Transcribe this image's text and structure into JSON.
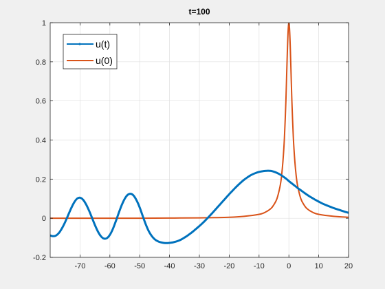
{
  "window": {
    "background": "#f0f0f0"
  },
  "chart_data": {
    "type": "line",
    "title": "t=100",
    "xlabel": "",
    "ylabel": "",
    "xlim": [
      -80,
      20
    ],
    "ylim": [
      -0.2,
      1
    ],
    "grid": true,
    "legend_position": "top-left",
    "x_ticks": [
      -70,
      -60,
      -50,
      -40,
      -30,
      -20,
      -10,
      0,
      10,
      20
    ],
    "x_tick_labels": [
      "-70",
      "-60",
      "-50",
      "-40",
      "-30",
      "-20",
      "-10",
      "0",
      "10",
      "20"
    ],
    "y_ticks": [
      -0.2,
      0,
      0.2,
      0.4,
      0.6,
      0.8,
      1
    ],
    "y_tick_labels": [
      "-0.2",
      "0",
      "0.2",
      "0.4",
      "0.6",
      "0.8",
      "1"
    ],
    "series": [
      {
        "name": "u(t)",
        "color": "#0072bd",
        "line_width": 3,
        "x": [
          -80,
          -79,
          -78,
          -77,
          -76,
          -75,
          -74,
          -73,
          -72,
          -71,
          -70,
          -69,
          -68,
          -67,
          -66,
          -65,
          -64,
          -63,
          -62,
          -61,
          -60,
          -59,
          -58,
          -57,
          -56,
          -55,
          -54,
          -53,
          -52,
          -51,
          -50,
          -49,
          -48,
          -47,
          -46,
          -45,
          -44,
          -43,
          -42,
          -41,
          -40,
          -39,
          -38,
          -37,
          -36,
          -35,
          -34,
          -33,
          -32,
          -31,
          -30,
          -29,
          -28,
          -27,
          -26,
          -25,
          -24,
          -23,
          -22,
          -21,
          -20,
          -19,
          -18,
          -17,
          -16,
          -15,
          -14,
          -13,
          -12,
          -11,
          -10,
          -9,
          -8,
          -7,
          -6,
          -5,
          -4,
          -3,
          -2,
          -1,
          0,
          1,
          2,
          3,
          4,
          5,
          6,
          7,
          8,
          9,
          10,
          11,
          12,
          13,
          14,
          15,
          16,
          17,
          18,
          19,
          20
        ],
        "y": [
          -0.088,
          -0.092,
          -0.088,
          -0.074,
          -0.05,
          -0.02,
          0.015,
          0.05,
          0.08,
          0.1,
          0.105,
          0.095,
          0.072,
          0.04,
          0.003,
          -0.035,
          -0.068,
          -0.092,
          -0.104,
          -0.102,
          -0.085,
          -0.055,
          -0.015,
          0.028,
          0.068,
          0.1,
          0.12,
          0.125,
          0.115,
          0.09,
          0.055,
          0.012,
          -0.03,
          -0.065,
          -0.09,
          -0.107,
          -0.117,
          -0.123,
          -0.126,
          -0.127,
          -0.126,
          -0.124,
          -0.12,
          -0.115,
          -0.108,
          -0.099,
          -0.089,
          -0.078,
          -0.066,
          -0.053,
          -0.04,
          -0.026,
          -0.011,
          0.005,
          0.021,
          0.038,
          0.055,
          0.072,
          0.089,
          0.106,
          0.123,
          0.139,
          0.155,
          0.17,
          0.184,
          0.197,
          0.208,
          0.218,
          0.226,
          0.232,
          0.237,
          0.24,
          0.242,
          0.243,
          0.242,
          0.238,
          0.232,
          0.224,
          0.214,
          0.203,
          0.19,
          0.178,
          0.166,
          0.154,
          0.143,
          0.132,
          0.121,
          0.111,
          0.102,
          0.093,
          0.085,
          0.077,
          0.07,
          0.064,
          0.058,
          0.052,
          0.047,
          0.042,
          0.037,
          0.032,
          0.028
        ]
      },
      {
        "name": "u(0)",
        "color": "#d95319",
        "line_width": 2,
        "x": [
          -80,
          -70,
          -60,
          -50,
          -40,
          -30,
          -25,
          -20,
          -15,
          -10,
          -8,
          -6,
          -5,
          -4,
          -3,
          -2.5,
          -2,
          -1.5,
          -1,
          -0.75,
          -0.5,
          -0.25,
          0,
          0.25,
          0.5,
          0.75,
          1,
          1.5,
          2,
          2.5,
          3,
          4,
          5,
          6,
          8,
          10,
          15,
          20
        ],
        "y": [
          0.0,
          0.0,
          0.0,
          0.0,
          0.001,
          0.002,
          0.003,
          0.005,
          0.01,
          0.02,
          0.03,
          0.05,
          0.07,
          0.1,
          0.16,
          0.21,
          0.29,
          0.41,
          0.6,
          0.73,
          0.86,
          0.96,
          1.0,
          0.96,
          0.86,
          0.73,
          0.6,
          0.41,
          0.29,
          0.21,
          0.16,
          0.1,
          0.07,
          0.05,
          0.03,
          0.02,
          0.01,
          0.005
        ]
      }
    ]
  }
}
